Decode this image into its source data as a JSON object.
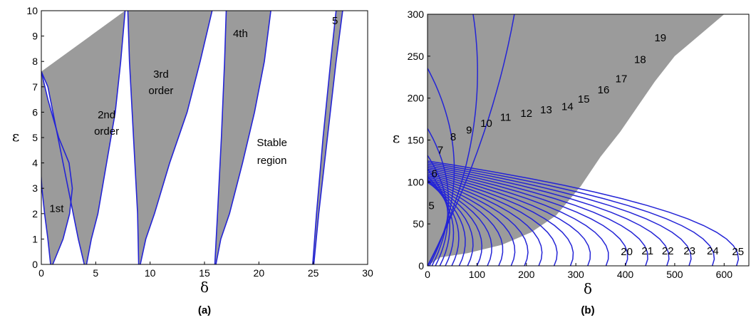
{
  "colors": {
    "shade": "#9b9b9b",
    "curve": "#2424d6",
    "frame": "#000000"
  },
  "chart_data": [
    {
      "type": "area",
      "panel_label": "(a)",
      "xlabel": "δ",
      "ylabel": "ε",
      "xlim": [
        0,
        30
      ],
      "ylim": [
        0,
        10
      ],
      "xticks": [
        "0",
        "5",
        "10",
        "15",
        "20",
        "25",
        "30"
      ],
      "yticks": [
        "0",
        "1",
        "2",
        "3",
        "4",
        "5",
        "6",
        "7",
        "8",
        "9",
        "10"
      ],
      "tongues": [
        {
          "name": "1st",
          "n": 1
        },
        {
          "name": "2nd order",
          "n": 2
        },
        {
          "name": "3rd order",
          "n": 3
        },
        {
          "name": "4th",
          "n": 4
        },
        {
          "name": "5",
          "n": 5
        }
      ],
      "annotations": [
        {
          "text": "1st",
          "x": 1.4,
          "y": 2.2
        },
        {
          "text": "2nd",
          "x": 6.0,
          "y": 5.9
        },
        {
          "text": "order",
          "x": 6.0,
          "y": 5.25
        },
        {
          "text": "3rd",
          "x": 11.0,
          "y": 7.5
        },
        {
          "text": "order",
          "x": 11.0,
          "y": 6.85
        },
        {
          "text": "4th",
          "x": 18.3,
          "y": 9.1
        },
        {
          "text": "Stable",
          "x": 21.2,
          "y": 4.8
        },
        {
          "text": "region",
          "x": 21.2,
          "y": 4.1
        },
        {
          "text": "5",
          "x": 27.0,
          "y": 9.6
        }
      ]
    },
    {
      "type": "area",
      "panel_label": "(b)",
      "xlabel": "δ",
      "ylabel": "ε",
      "xlim": [
        0,
        650
      ],
      "ylim": [
        0,
        300
      ],
      "xticks": [
        "0",
        "100",
        "200",
        "300",
        "400",
        "500",
        "600"
      ],
      "yticks": [
        "0",
        "50",
        "100",
        "150",
        "200",
        "250",
        "300"
      ],
      "curve_count": 26,
      "annotations": [
        {
          "text": "5",
          "x": 8,
          "y": 72
        },
        {
          "text": "6",
          "x": 14,
          "y": 110
        },
        {
          "text": "7",
          "x": 26,
          "y": 138
        },
        {
          "text": "8",
          "x": 52,
          "y": 154
        },
        {
          "text": "9",
          "x": 84,
          "y": 162
        },
        {
          "text": "10",
          "x": 119,
          "y": 170
        },
        {
          "text": "11",
          "x": 158,
          "y": 177
        },
        {
          "text": "12",
          "x": 200,
          "y": 182
        },
        {
          "text": "13",
          "x": 240,
          "y": 186
        },
        {
          "text": "14",
          "x": 283,
          "y": 190
        },
        {
          "text": "15",
          "x": 316,
          "y": 199
        },
        {
          "text": "16",
          "x": 356,
          "y": 210
        },
        {
          "text": "17",
          "x": 392,
          "y": 223
        },
        {
          "text": "18",
          "x": 430,
          "y": 246
        },
        {
          "text": "19",
          "x": 471,
          "y": 272
        },
        {
          "text": "20",
          "x": 403,
          "y": 17
        },
        {
          "text": "21",
          "x": 445,
          "y": 18
        },
        {
          "text": "22",
          "x": 486,
          "y": 18
        },
        {
          "text": "23",
          "x": 530,
          "y": 18
        },
        {
          "text": "24",
          "x": 577,
          "y": 18
        },
        {
          "text": "25",
          "x": 628,
          "y": 17
        }
      ]
    }
  ]
}
